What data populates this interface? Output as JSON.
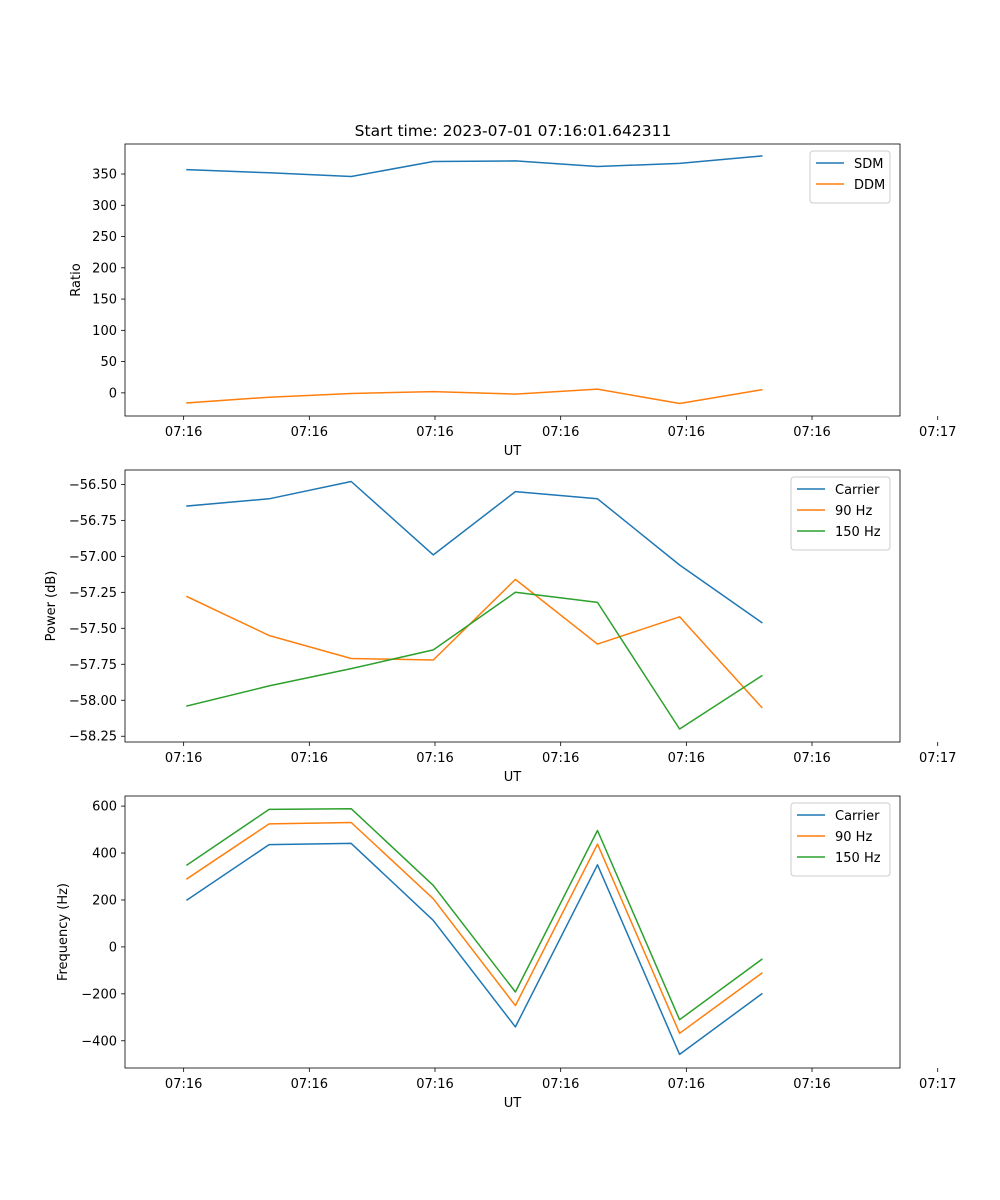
{
  "title": "Start time: 2023-07-01 07:16:01.642311",
  "chart_data": [
    {
      "type": "line",
      "title": "Start time: 2023-07-01 07:16:01.642311",
      "xlabel": "UT",
      "ylabel": "Ratio",
      "xlim": [
        -0.7,
        8.55
      ],
      "x_ticks": [
        0,
        1.5,
        3,
        4.5,
        6,
        7.5,
        9
      ],
      "x_tick_labels": [
        "07:16",
        "07:16",
        "07:16",
        "07:16",
        "07:16",
        "07:16",
        "07:17"
      ],
      "ylim": [
        -37,
        398
      ],
      "y_ticks": [
        0,
        50,
        100,
        150,
        200,
        250,
        300,
        350
      ],
      "y_tick_labels": [
        "0",
        "50",
        "100",
        "150",
        "200",
        "250",
        "300",
        "350"
      ],
      "legend": "top-right",
      "x": [
        0.04,
        1.02,
        2.0,
        2.98,
        3.96,
        4.94,
        5.92,
        6.9
      ],
      "series": [
        {
          "name": "SDM",
          "color": "#1f77b4",
          "values": [
            357,
            352,
            346,
            370,
            371,
            362,
            367,
            379
          ]
        },
        {
          "name": "DDM",
          "color": "#ff7f0e",
          "values": [
            -16,
            -7,
            -1,
            2,
            -2,
            6,
            -17,
            5
          ]
        }
      ]
    },
    {
      "type": "line",
      "xlabel": "UT",
      "ylabel": "Power (dB)",
      "xlim": [
        -0.7,
        8.55
      ],
      "x_ticks": [
        0,
        1.5,
        3,
        4.5,
        6,
        7.5,
        9
      ],
      "x_tick_labels": [
        "07:16",
        "07:16",
        "07:16",
        "07:16",
        "07:16",
        "07:16",
        "07:17"
      ],
      "ylim": [
        -58.29,
        -56.4
      ],
      "y_ticks": [
        -58.25,
        -58.0,
        -57.75,
        -57.5,
        -57.25,
        -57.0,
        -56.75,
        -56.5
      ],
      "y_tick_labels": [
        "−58.25",
        "−58.00",
        "−57.75",
        "−57.50",
        "−57.25",
        "−57.00",
        "−56.75",
        "−56.50"
      ],
      "legend": "top-right",
      "x": [
        0.04,
        1.02,
        2.0,
        2.98,
        3.96,
        4.94,
        5.92,
        6.9
      ],
      "series": [
        {
          "name": "Carrier",
          "color": "#1f77b4",
          "values": [
            -56.65,
            -56.6,
            -56.48,
            -56.99,
            -56.55,
            -56.6,
            -57.06,
            -57.46
          ]
        },
        {
          "name": "90 Hz",
          "color": "#ff7f0e",
          "values": [
            -57.28,
            -57.55,
            -57.71,
            -57.72,
            -57.16,
            -57.61,
            -57.42,
            -58.05
          ]
        },
        {
          "name": "150 Hz",
          "color": "#2ca02c",
          "values": [
            -58.04,
            -57.9,
            -57.78,
            -57.65,
            -57.25,
            -57.32,
            -58.2,
            -57.83
          ]
        }
      ]
    },
    {
      "type": "line",
      "xlabel": "UT",
      "ylabel": "Frequency (Hz)",
      "xlim": [
        -0.7,
        8.55
      ],
      "x_ticks": [
        0,
        1.5,
        3,
        4.5,
        6,
        7.5,
        9
      ],
      "x_tick_labels": [
        "07:16",
        "07:16",
        "07:16",
        "07:16",
        "07:16",
        "07:16",
        "07:17"
      ],
      "ylim": [
        -516,
        643
      ],
      "y_ticks": [
        -400,
        -200,
        0,
        200,
        400,
        600
      ],
      "y_tick_labels": [
        "−400",
        "−200",
        "0",
        "200",
        "400",
        "600"
      ],
      "legend": "top-right",
      "x": [
        0.04,
        1.02,
        2.0,
        2.98,
        3.96,
        4.94,
        5.92,
        6.9
      ],
      "series": [
        {
          "name": "Carrier",
          "color": "#1f77b4",
          "values": [
            200,
            436,
            441,
            113,
            -341,
            350,
            -458,
            -200
          ]
        },
        {
          "name": "90 Hz",
          "color": "#ff7f0e",
          "values": [
            290,
            524,
            530,
            205,
            -250,
            438,
            -368,
            -112
          ]
        },
        {
          "name": "150 Hz",
          "color": "#2ca02c",
          "values": [
            349,
            586,
            589,
            262,
            -192,
            496,
            -310,
            -53
          ]
        }
      ]
    }
  ]
}
